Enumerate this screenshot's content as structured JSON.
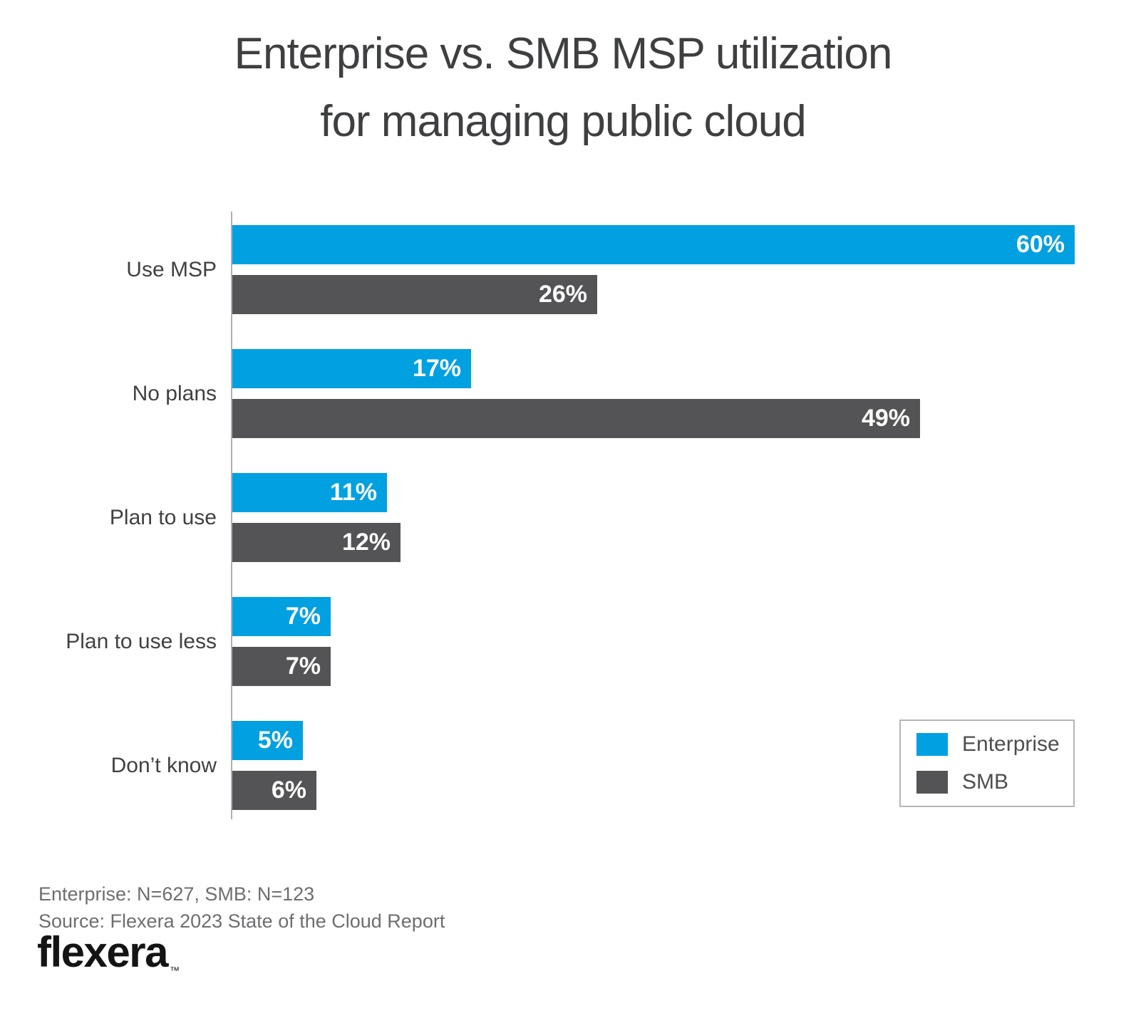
{
  "title": {
    "line1": "Enterprise vs. SMB MSP utilization",
    "line2": "for managing public cloud"
  },
  "chart_data": {
    "type": "bar",
    "orientation": "horizontal",
    "title": "Enterprise vs. SMB MSP utilization for managing public cloud",
    "categories": [
      "Use MSP",
      "No plans",
      "Plan to use",
      "Plan to use less",
      "Don’t know"
    ],
    "series": [
      {
        "name": "Enterprise",
        "color": "#00a0e1",
        "values": [
          60,
          17,
          11,
          7,
          5
        ]
      },
      {
        "name": "SMB",
        "color": "#545456",
        "values": [
          26,
          49,
          12,
          7,
          6
        ]
      }
    ],
    "value_suffix": "%",
    "value_labels": "inside-end-white",
    "xlabel": "",
    "ylabel": "",
    "xlim": [
      0,
      64
    ],
    "grid": false,
    "legend_position": "bottom-right"
  },
  "legend": {
    "items": [
      {
        "label": "Enterprise",
        "color": "#00a0e1"
      },
      {
        "label": "SMB",
        "color": "#545456"
      }
    ]
  },
  "footer": {
    "sample_note": "Enterprise: N=627, SMB: N=123",
    "source": "Source: Flexera 2023 State of the Cloud Report",
    "brand": "flexera",
    "trademark": "™"
  },
  "colors": {
    "background": "#ffffff",
    "enterprise_blue": "#00a0e1",
    "smb_gray": "#545456",
    "axis_line": "#aeafb1",
    "title_text": "#3e3f41",
    "category_text": "#414042",
    "value_label_text": "#ffffff",
    "legend_border": "#b5b6b8",
    "legend_text": "#4d4e50",
    "footer_text": "#6d6e70",
    "logo_text": "#141414"
  }
}
